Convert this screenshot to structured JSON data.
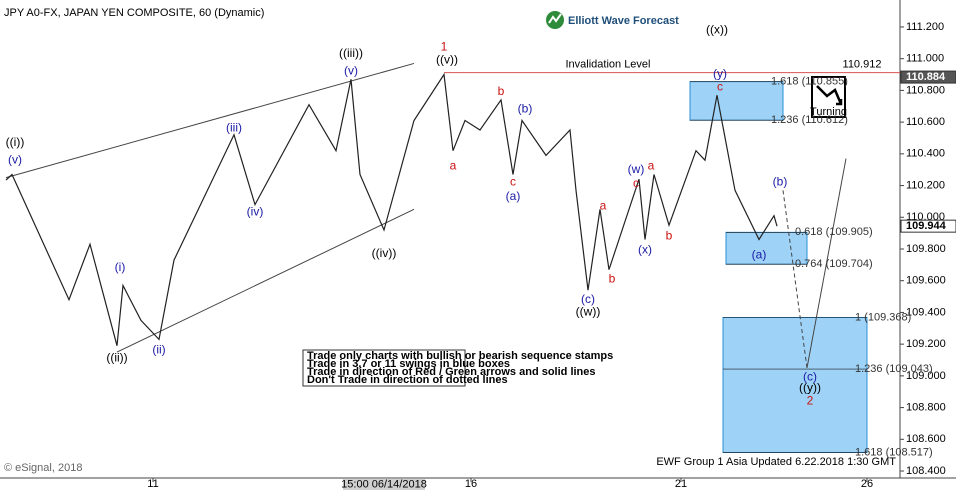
{
  "chart_data": {
    "type": "line",
    "title": "JPY A0-FX, JAPAN YEN COMPOSITE, 60 (Dynamic)",
    "brand": "Elliott Wave Forecast",
    "footer": "EWF Group 1 Asia Updated 6.22.2018 1:30 GMT",
    "copyright": "© eSignal, 2018",
    "notes": [
      "Trade only charts with bullish or bearish sequence stamps",
      "Trade in 3,7 or 11 swings in blue boxes",
      "Trade in direction of Red / Green arrows and solid lines",
      "Don't Trade in direction of dotted lines"
    ],
    "turning_label": "Turning",
    "color": "#222222",
    "x": [
      2,
      4,
      23,
      30,
      39,
      41,
      47,
      53,
      58,
      78,
      85,
      103,
      112,
      117,
      120,
      128,
      138,
      148,
      151,
      155,
      160,
      167,
      171,
      174,
      182,
      190,
      192,
      196,
      200,
      203,
      213,
      215,
      218,
      223,
      232,
      235,
      239,
      245,
      253,
      258,
      259
    ],
    "values": [
      110.235,
      110.27,
      109.48,
      109.83,
      109.19,
      109.57,
      109.35,
      109.23,
      109.73,
      110.52,
      110.08,
      110.71,
      110.42,
      110.87,
      110.27,
      109.92,
      110.61,
      110.9,
      110.42,
      110.61,
      110.55,
      110.74,
      110.27,
      110.61,
      110.39,
      110.55,
      110.17,
      109.54,
      110.05,
      109.67,
      110.24,
      109.86,
      110.27,
      109.95,
      110.42,
      110.36,
      110.77,
      110.17,
      109.86,
      110.01,
      109.944
    ],
    "xlim": [
      0,
      300
    ],
    "ylim": [
      108.356,
      111.37
    ],
    "xticks": [
      {
        "value": 51,
        "label": "11"
      },
      {
        "value": 157,
        "label": "16"
      },
      {
        "value": 227,
        "label": "21"
      },
      {
        "value": 289,
        "label": "26"
      }
    ],
    "cursor": {
      "x": 128,
      "label": "15:00 06/14/2018"
    },
    "yticks": [
      {
        "value": 111.2,
        "label": "111.200"
      },
      {
        "value": 111.0,
        "label": "111.000"
      },
      {
        "value": 110.8,
        "label": "110.800"
      },
      {
        "value": 110.6,
        "label": "110.600"
      },
      {
        "value": 110.4,
        "label": "110.400"
      },
      {
        "value": 110.2,
        "label": "110.200"
      },
      {
        "value": 110.0,
        "label": "110.000"
      },
      {
        "value": 109.8,
        "label": "109.800"
      },
      {
        "value": 109.6,
        "label": "109.600"
      },
      {
        "value": 109.4,
        "label": "109.400"
      },
      {
        "value": 109.2,
        "label": "109.200"
      },
      {
        "value": 109.0,
        "label": "109.000"
      },
      {
        "value": 108.8,
        "label": "108.800"
      },
      {
        "value": 108.6,
        "label": "108.600"
      },
      {
        "value": 108.4,
        "label": "108.400"
      }
    ],
    "price_tags": [
      110.884,
      109.944
    ],
    "invalidation": {
      "label": "Invalidation Level",
      "value": 110.912,
      "x": 148
    },
    "trendlines": [
      [
        [
          2,
          110.25
        ],
        [
          138,
          110.97
        ]
      ],
      [
        [
          39,
          109.15
        ],
        [
          138,
          110.05
        ]
      ]
    ],
    "projections": [
      {
        "style": "dashed",
        "points": [
          [
            261,
            110.17
          ],
          [
            269,
            109.05
          ]
        ]
      },
      {
        "style": "solid",
        "points": [
          [
            269,
            109.05
          ],
          [
            282,
            110.37
          ]
        ]
      }
    ],
    "boxes": [
      {
        "x0": 230,
        "x1": 261,
        "levels": [
          {
            "value": 110.855,
            "label": "1.618 (110.855)"
          },
          {
            "value": 110.612,
            "label": "1.236 (110.612)"
          }
        ]
      },
      {
        "x0": 242,
        "x1": 269,
        "levels": [
          {
            "value": 109.905,
            "label": "0.618 (109.905)"
          },
          {
            "value": 109.704,
            "label": "0.764 (109.704)"
          }
        ]
      },
      {
        "x0": 241,
        "x1": 289,
        "levels": [
          {
            "value": 109.368,
            "label": "1 (109.368)"
          },
          {
            "value": 109.043,
            "label": "1.236 (109.043)"
          },
          {
            "value": 108.517,
            "label": "1.618 (108.517)"
          }
        ]
      }
    ],
    "annotations": [
      {
        "text": "((i))",
        "x": 5,
        "y": 110.47,
        "color": "#000000"
      },
      {
        "text": "(v)",
        "x": 5,
        "y": 110.36,
        "color": "#1a1aa6"
      },
      {
        "text": "(i)",
        "x": 40,
        "y": 109.68,
        "color": "#1a1aa6"
      },
      {
        "text": "((ii))",
        "x": 39,
        "y": 109.11,
        "color": "#000000"
      },
      {
        "text": "(ii)",
        "x": 53,
        "y": 109.16,
        "color": "#1a1aa6"
      },
      {
        "text": "(iii)",
        "x": 78,
        "y": 110.56,
        "color": "#1a1aa6"
      },
      {
        "text": "(iv)",
        "x": 85,
        "y": 110.03,
        "color": "#1a1aa6"
      },
      {
        "text": "((iii))",
        "x": 117,
        "y": 111.03,
        "color": "#000000"
      },
      {
        "text": "(v)",
        "x": 117,
        "y": 110.92,
        "color": "#1a1aa6"
      },
      {
        "text": "((iv))",
        "x": 128,
        "y": 109.77,
        "color": "#000000"
      },
      {
        "text": "1",
        "x": 148,
        "y": 111.07,
        "color": "#cc1111"
      },
      {
        "text": "((v))",
        "x": 149,
        "y": 110.99,
        "color": "#000000"
      },
      {
        "text": "a",
        "x": 151,
        "y": 110.32,
        "color": "#cc1111"
      },
      {
        "text": "b",
        "x": 167,
        "y": 110.79,
        "color": "#cc1111"
      },
      {
        "text": "c",
        "x": 171,
        "y": 110.22,
        "color": "#cc1111"
      },
      {
        "text": "(a)",
        "x": 171,
        "y": 110.13,
        "color": "#1a1aa6"
      },
      {
        "text": "(b)",
        "x": 175,
        "y": 110.68,
        "color": "#1a1aa6"
      },
      {
        "text": "(c)",
        "x": 196,
        "y": 109.48,
        "color": "#1a1aa6"
      },
      {
        "text": "((w))",
        "x": 196,
        "y": 109.4,
        "color": "#000000"
      },
      {
        "text": "a",
        "x": 201,
        "y": 110.07,
        "color": "#cc1111"
      },
      {
        "text": "b",
        "x": 204,
        "y": 109.61,
        "color": "#cc1111"
      },
      {
        "text": "(w)",
        "x": 212,
        "y": 110.3,
        "color": "#1a1aa6"
      },
      {
        "text": "c",
        "x": 212,
        "y": 110.21,
        "color": "#cc1111"
      },
      {
        "text": "a",
        "x": 217,
        "y": 110.32,
        "color": "#cc1111"
      },
      {
        "text": "(x)",
        "x": 215,
        "y": 109.79,
        "color": "#1a1aa6"
      },
      {
        "text": "b",
        "x": 223,
        "y": 109.88,
        "color": "#cc1111"
      },
      {
        "text": "((x))",
        "x": 239,
        "y": 111.18,
        "color": "#000000"
      },
      {
        "text": "(y)",
        "x": 240,
        "y": 110.9,
        "color": "#1a1aa6"
      },
      {
        "text": "c",
        "x": 240,
        "y": 110.82,
        "color": "#cc1111"
      },
      {
        "text": "(a)",
        "x": 253,
        "y": 109.76,
        "color": "#1a1aa6"
      },
      {
        "text": "(b)",
        "x": 260,
        "y": 110.22,
        "color": "#1a1aa6"
      },
      {
        "text": "(c)",
        "x": 270,
        "y": 108.99,
        "color": "#1a1aa6"
      },
      {
        "text": "((y))",
        "x": 270,
        "y": 108.92,
        "color": "#000000"
      },
      {
        "text": "2",
        "x": 270,
        "y": 108.84,
        "color": "#cc1111"
      }
    ]
  }
}
